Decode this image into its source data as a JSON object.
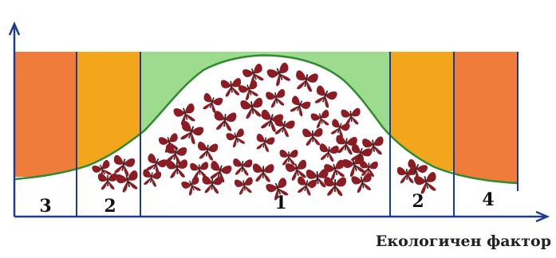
{
  "diagram": {
    "axis_label": "Екологичен фактор",
    "zones": [
      {
        "id": "left-outer",
        "label": "3"
      },
      {
        "id": "left-inner",
        "label": "2"
      },
      {
        "id": "center",
        "label": "1"
      },
      {
        "id": "right-inner",
        "label": "2"
      },
      {
        "id": "right-outer",
        "label": "4"
      }
    ],
    "colors": {
      "outer_zone": "#f07c3c",
      "inner_zone": "#f3a51c",
      "optimum_zone": "#9ddc8f",
      "curve": "#2e8b2e",
      "axis": "#1f3a93",
      "divider": "#1f3a93",
      "butterfly": "#8b1c24"
    },
    "icons": {
      "organism": "butterfly-icon"
    }
  }
}
